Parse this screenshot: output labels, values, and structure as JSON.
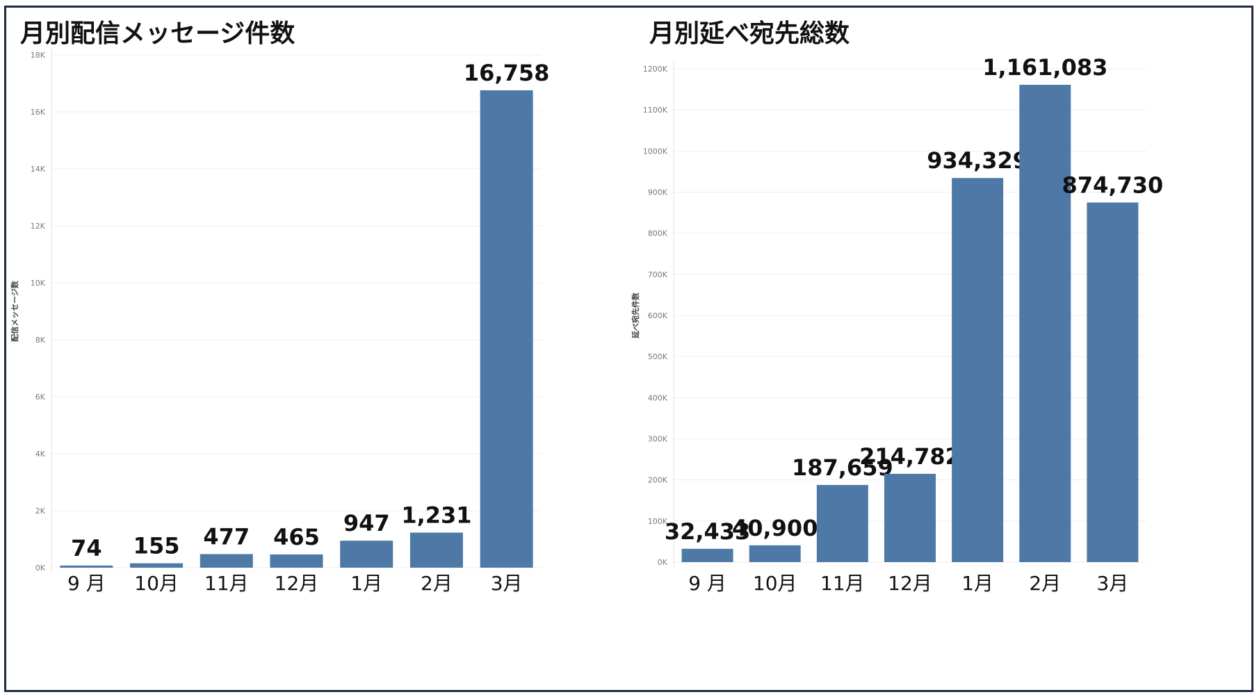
{
  "chart_data": [
    {
      "type": "bar",
      "title": "月別配信メッセージ件数",
      "ylabel": "配信メッセージ数",
      "xlabel": "",
      "categories": [
        "9 月",
        "10月",
        "11月",
        "12月",
        "1月",
        "2月",
        "3月"
      ],
      "values": [
        74,
        155,
        477,
        465,
        947,
        1231,
        16758
      ],
      "value_labels": [
        "74",
        "155",
        "477",
        "465",
        "947",
        "1,231",
        "16,758"
      ],
      "ylim": [
        0,
        18000
      ],
      "yticks": [
        0,
        2000,
        4000,
        6000,
        8000,
        10000,
        12000,
        14000,
        16000,
        18000
      ],
      "ytick_labels": [
        "0K",
        "2K",
        "4K",
        "6K",
        "8K",
        "10K",
        "12K",
        "14K",
        "16K",
        "18K"
      ],
      "grid": true,
      "bar_color": "#4e79a7"
    },
    {
      "type": "bar",
      "title": "月別延べ宛先総数",
      "ylabel": "延べ宛先件数",
      "xlabel": "",
      "categories": [
        "9 月",
        "10月",
        "11月",
        "12月",
        "1月",
        "2月",
        "3月"
      ],
      "values": [
        32433,
        40900,
        187659,
        214782,
        934329,
        1161083,
        874730
      ],
      "value_labels": [
        "32,433",
        "40,900",
        "187,659",
        "214,782",
        "934,329",
        "1,161,083",
        "874,730"
      ],
      "ylim": [
        0,
        1200000
      ],
      "yticks": [
        0,
        100000,
        200000,
        300000,
        400000,
        500000,
        600000,
        700000,
        800000,
        900000,
        1000000,
        1100000,
        1200000
      ],
      "ytick_labels": [
        "0K",
        "100K",
        "200K",
        "300K",
        "400K",
        "500K",
        "600K",
        "700K",
        "800K",
        "900K",
        "1000K",
        "1100K",
        "1200K"
      ],
      "grid": true,
      "bar_color": "#4e79a7"
    }
  ]
}
